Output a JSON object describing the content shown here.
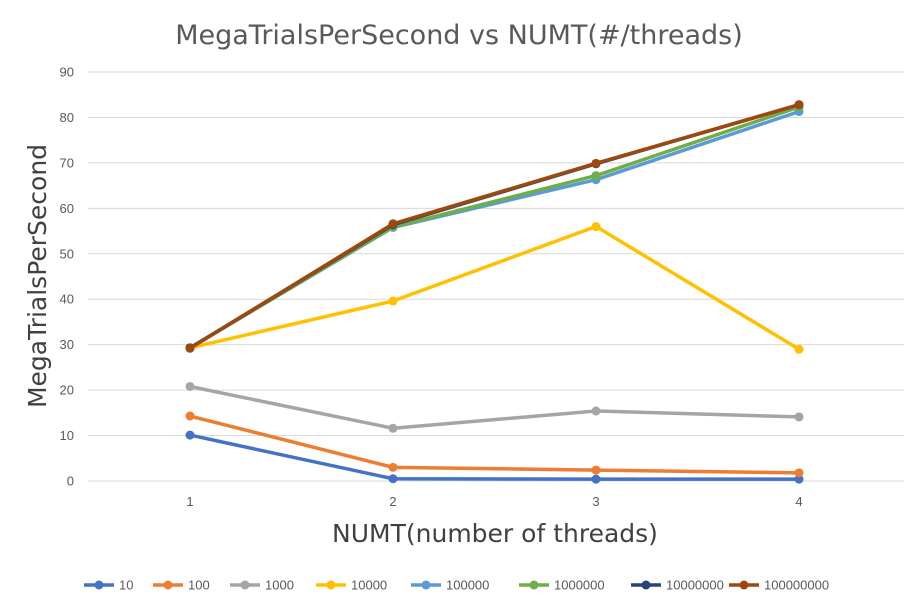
{
  "chart_data": {
    "type": "line",
    "title": "MegaTrialsPerSecond vs NUMT(#/threads)",
    "xlabel": "NUMT(number of threads)",
    "ylabel": "MegaTrialsPerSecond",
    "categories": [
      "1",
      "2",
      "3",
      "4"
    ],
    "ylim": [
      0,
      90
    ],
    "yticks": [
      0,
      10,
      20,
      30,
      40,
      50,
      60,
      70,
      80,
      90
    ],
    "grid": true,
    "legend_position": "bottom",
    "series": [
      {
        "name": "10",
        "color": "#4472C4",
        "values": [
          10.1,
          0.5,
          0.4,
          0.4
        ]
      },
      {
        "name": "100",
        "color": "#ED7D31",
        "values": [
          14.3,
          3.0,
          2.4,
          1.8
        ]
      },
      {
        "name": "1000",
        "color": "#A5A5A5",
        "values": [
          20.8,
          11.6,
          15.4,
          14.1
        ]
      },
      {
        "name": "10000",
        "color": "#FFC000",
        "values": [
          29.3,
          39.6,
          56.0,
          29.0
        ]
      },
      {
        "name": "100000",
        "color": "#5B9BD5",
        "values": [
          29.3,
          55.8,
          66.3,
          81.3
        ]
      },
      {
        "name": "1000000",
        "color": "#70AD47",
        "values": [
          29.3,
          55.9,
          67.2,
          82.3
        ]
      },
      {
        "name": "10000000",
        "color": "#264478",
        "values": [
          29.3,
          56.4,
          69.8,
          82.8
        ]
      },
      {
        "name": "100000000",
        "color": "#9E480E",
        "values": [
          29.2,
          56.6,
          69.9,
          82.8
        ]
      }
    ]
  }
}
